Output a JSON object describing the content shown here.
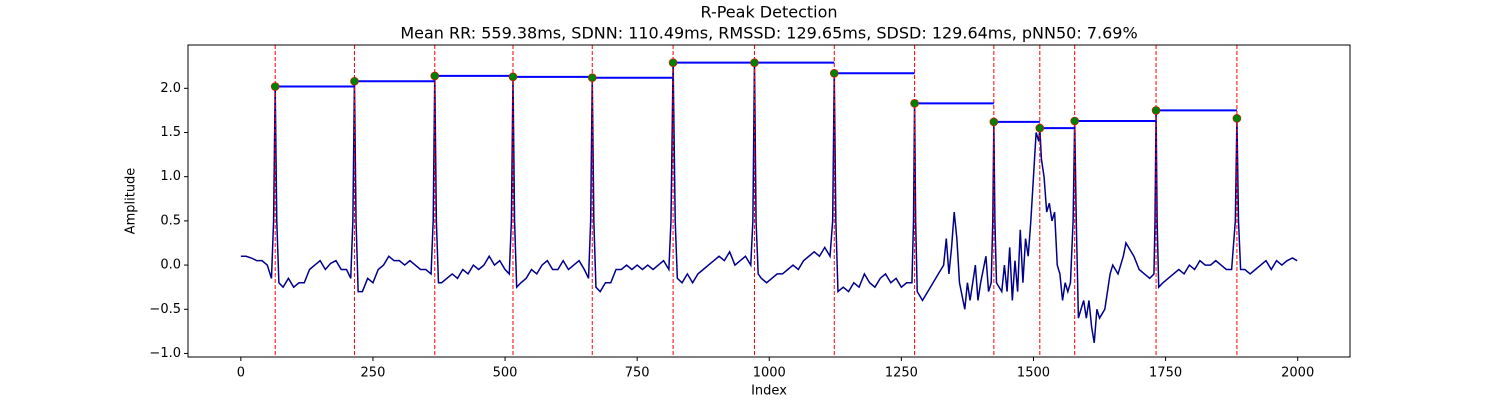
{
  "chart_data": {
    "type": "ecg-peaks",
    "title": "R-Peak Detection",
    "subtitle": "Mean RR: 559.38ms, SDNN: 110.49ms, RMSSD: 129.65ms, SDSD: 129.64ms, pNN50: 7.69%",
    "x_label": "Index",
    "y_label": "Amplitude",
    "xlim": [
      -100,
      2099
    ],
    "ylim": [
      -1.04,
      2.49
    ],
    "xticks": [
      0,
      250,
      500,
      750,
      1000,
      1250,
      1500,
      1750,
      2000
    ],
    "yticks": [
      {
        "value": -1,
        "label": "−1.0"
      },
      {
        "value": -0.5,
        "label": "−0.5"
      },
      {
        "value": 0,
        "label": "0.0"
      },
      {
        "value": 0.5,
        "label": "0.5"
      },
      {
        "value": 1,
        "label": "1.0"
      },
      {
        "value": 1.5,
        "label": "1.5"
      },
      {
        "value": 2,
        "label": "2.0"
      }
    ],
    "signal": {
      "color": "#00008b",
      "x": [
        0,
        10,
        20,
        30,
        40,
        50,
        58,
        62,
        65,
        68,
        72,
        80,
        90,
        100,
        110,
        120,
        130,
        140,
        150,
        160,
        170,
        180,
        190,
        200,
        208,
        212,
        215,
        218,
        222,
        230,
        240,
        250,
        260,
        270,
        280,
        290,
        300,
        310,
        320,
        330,
        340,
        350,
        360,
        364,
        367,
        370,
        374,
        380,
        390,
        400,
        410,
        420,
        430,
        440,
        450,
        460,
        470,
        480,
        490,
        500,
        508,
        512,
        515,
        518,
        522,
        530,
        540,
        550,
        560,
        570,
        580,
        590,
        600,
        610,
        620,
        630,
        640,
        650,
        658,
        662,
        665,
        668,
        672,
        680,
        690,
        700,
        710,
        720,
        730,
        740,
        750,
        760,
        770,
        780,
        790,
        800,
        810,
        814,
        818,
        822,
        826,
        835,
        845,
        855,
        865,
        875,
        885,
        895,
        905,
        915,
        925,
        935,
        945,
        955,
        965,
        969,
        972,
        975,
        979,
        985,
        995,
        1005,
        1015,
        1025,
        1035,
        1045,
        1055,
        1065,
        1075,
        1085,
        1095,
        1105,
        1115,
        1120,
        1123,
        1126,
        1130,
        1140,
        1150,
        1160,
        1170,
        1180,
        1190,
        1200,
        1210,
        1220,
        1230,
        1240,
        1250,
        1260,
        1270,
        1273,
        1275,
        1277,
        1280,
        1290,
        1300,
        1310,
        1320,
        1330,
        1335,
        1340,
        1345,
        1350,
        1355,
        1360,
        1370,
        1375,
        1380,
        1385,
        1390,
        1395,
        1400,
        1410,
        1415,
        1420,
        1423,
        1425,
        1427,
        1430,
        1440,
        1445,
        1450,
        1455,
        1460,
        1465,
        1470,
        1475,
        1480,
        1485,
        1490,
        1495,
        1500,
        1505,
        1510,
        1512,
        1515,
        1520,
        1525,
        1530,
        1535,
        1540,
        1545,
        1550,
        1555,
        1560,
        1565,
        1570,
        1575,
        1578,
        1581,
        1585,
        1590,
        1595,
        1600,
        1605,
        1610,
        1615,
        1620,
        1625,
        1630,
        1635,
        1640,
        1645,
        1650,
        1660,
        1670,
        1675,
        1680,
        1690,
        1700,
        1710,
        1720,
        1728,
        1730,
        1732,
        1734,
        1737,
        1745,
        1755,
        1765,
        1775,
        1785,
        1795,
        1805,
        1815,
        1825,
        1835,
        1845,
        1855,
        1865,
        1875,
        1882,
        1885,
        1888,
        1892,
        1900,
        1910,
        1920,
        1930,
        1940,
        1950,
        1960,
        1970,
        1980,
        1990,
        1999
      ],
      "y": [
        0.1,
        0.1,
        0.08,
        0.05,
        0.05,
        0.0,
        -0.15,
        0.5,
        2.02,
        0.5,
        -0.2,
        -0.25,
        -0.15,
        -0.25,
        -0.2,
        -0.2,
        -0.05,
        0.0,
        0.05,
        -0.05,
        0.02,
        0.05,
        -0.05,
        -0.05,
        -0.15,
        0.5,
        2.08,
        0.5,
        -0.3,
        -0.3,
        -0.15,
        -0.2,
        -0.05,
        0.0,
        0.1,
        0.05,
        0.05,
        0.0,
        0.05,
        0.0,
        -0.05,
        -0.05,
        -0.1,
        0.5,
        2.14,
        0.5,
        -0.2,
        -0.2,
        -0.15,
        -0.1,
        -0.15,
        -0.05,
        -0.1,
        0.0,
        -0.05,
        0.0,
        0.1,
        0.0,
        0.05,
        -0.05,
        -0.1,
        0.5,
        2.13,
        0.5,
        -0.25,
        -0.2,
        -0.15,
        -0.05,
        -0.1,
        0.0,
        0.05,
        -0.05,
        -0.05,
        0.05,
        -0.05,
        0.0,
        0.05,
        -0.05,
        -0.15,
        0.5,
        2.12,
        0.5,
        -0.25,
        -0.3,
        -0.2,
        -0.2,
        -0.05,
        -0.05,
        0.0,
        -0.05,
        0.0,
        -0.05,
        0.0,
        -0.05,
        0.0,
        0.05,
        -0.05,
        0.5,
        2.29,
        0.5,
        -0.15,
        -0.2,
        -0.1,
        -0.2,
        -0.1,
        -0.05,
        0.0,
        0.05,
        0.1,
        0.05,
        0.15,
        0.0,
        0.05,
        0.1,
        0.0,
        0.5,
        2.29,
        0.5,
        -0.1,
        -0.15,
        -0.2,
        -0.15,
        -0.1,
        -0.1,
        -0.05,
        0.0,
        -0.05,
        0.05,
        0.1,
        0.15,
        0.1,
        0.2,
        0.1,
        0.5,
        2.17,
        0.5,
        -0.3,
        -0.25,
        -0.3,
        -0.2,
        -0.25,
        -0.1,
        -0.2,
        -0.25,
        -0.15,
        -0.1,
        -0.2,
        -0.15,
        -0.25,
        -0.2,
        -0.2,
        0.5,
        1.83,
        0.5,
        -0.3,
        -0.4,
        -0.3,
        -0.2,
        -0.1,
        0.0,
        0.3,
        -0.1,
        0.2,
        0.6,
        0.3,
        -0.2,
        -0.5,
        -0.2,
        -0.4,
        -0.2,
        0.0,
        -0.4,
        -0.2,
        0.1,
        -0.3,
        -0.2,
        0.5,
        1.62,
        0.5,
        -0.2,
        -0.3,
        0.0,
        -0.3,
        0.2,
        -0.4,
        0.05,
        -0.3,
        0.4,
        -0.2,
        0.3,
        0.1,
        0.5,
        1.0,
        1.5,
        1.4,
        1.55,
        1.2,
        1.0,
        0.6,
        0.7,
        0.5,
        0.6,
        0.0,
        -0.1,
        -0.4,
        -0.2,
        -0.3,
        -0.2,
        0.5,
        1.63,
        0.5,
        -0.6,
        -0.5,
        -0.4,
        -0.6,
        -0.4,
        -0.7,
        -0.88,
        -0.5,
        -0.6,
        -0.55,
        -0.5,
        -0.3,
        -0.1,
        0.0,
        -0.1,
        0.1,
        0.25,
        0.2,
        0.1,
        -0.05,
        -0.1,
        -0.15,
        -0.1,
        0.5,
        1.75,
        0.5,
        -0.25,
        -0.2,
        -0.15,
        -0.1,
        -0.05,
        -0.1,
        0.0,
        -0.05,
        0.05,
        0.0,
        0.0,
        0.05,
        0.0,
        -0.05,
        -0.05,
        0.5,
        1.66,
        0.5,
        -0.05,
        -0.05,
        -0.1,
        -0.05,
        0.0,
        0.05,
        -0.05,
        0.05,
        0.0,
        0.05,
        0.08,
        0.05
      ]
    },
    "peaks": {
      "color": "#008000",
      "edge_color": "#ff0000",
      "line_color": "#ff0000",
      "rr_color": "#0000ff",
      "x": [
        65,
        215,
        367,
        515,
        665,
        818,
        972,
        1123,
        1275,
        1425,
        1512,
        1578,
        1732,
        1885
      ],
      "y": [
        2.02,
        2.08,
        2.14,
        2.13,
        2.12,
        2.29,
        2.29,
        2.17,
        1.83,
        1.62,
        1.55,
        1.63,
        1.75,
        1.66
      ]
    }
  }
}
